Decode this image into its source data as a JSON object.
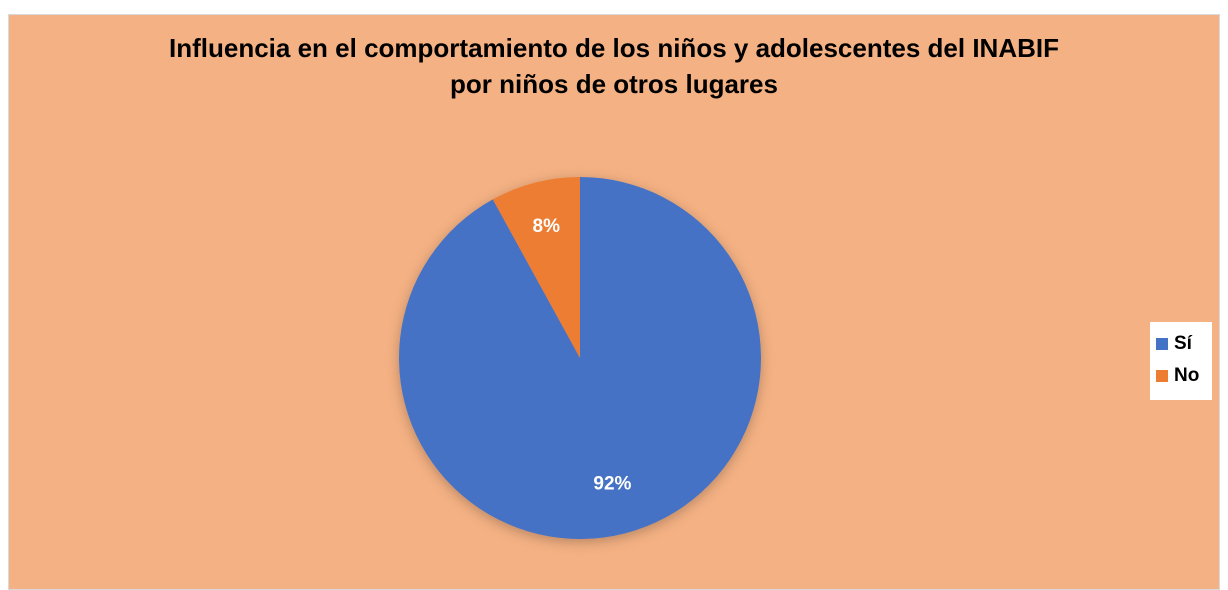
{
  "chart_data": {
    "type": "pie",
    "title": [
      "Influencia en el comportamiento de los niños y adolescentes del INABIF",
      "por niños de otros lugares"
    ],
    "slices": [
      {
        "name": "Sí",
        "value": 92,
        "label": "92%",
        "color": "#4472c4"
      },
      {
        "name": "No",
        "value": 8,
        "label": "8%",
        "color": "#ed7d31"
      }
    ],
    "legend": {
      "position": "right"
    },
    "background_color": "#f4b183"
  }
}
